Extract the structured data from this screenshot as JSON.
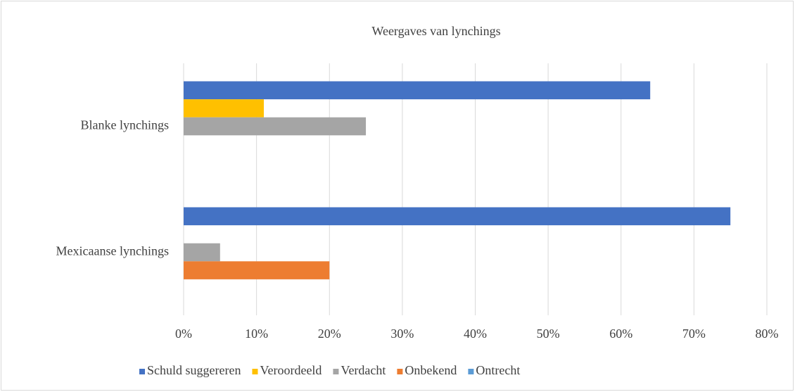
{
  "chart_data": {
    "type": "hbar",
    "title": "Weergaves van lynchings",
    "categories": [
      "Blanke lynchings",
      "Mexicaanse lynchings"
    ],
    "series": [
      {
        "name": "Schuld suggereren",
        "color": "#4472c4",
        "values": [
          64,
          75
        ]
      },
      {
        "name": "Veroordeeld",
        "color": "#ffc000",
        "values": [
          11,
          0
        ]
      },
      {
        "name": "Verdacht",
        "color": "#a5a5a5",
        "values": [
          25,
          5
        ]
      },
      {
        "name": "Onbekend",
        "color": "#ed7d31",
        "values": [
          0,
          20
        ]
      },
      {
        "name": "Ontrecht",
        "color": "#5b9bd5",
        "values": [
          0,
          0
        ]
      }
    ],
    "xlim": [
      0,
      80
    ],
    "xticks": [
      {
        "value": 0,
        "label": "0%"
      },
      {
        "value": 10,
        "label": "10%"
      },
      {
        "value": 20,
        "label": "20%"
      },
      {
        "value": 30,
        "label": "30%"
      },
      {
        "value": 40,
        "label": "40%"
      },
      {
        "value": 50,
        "label": "50%"
      },
      {
        "value": 60,
        "label": "60%"
      },
      {
        "value": 70,
        "label": "70%"
      },
      {
        "value": 80,
        "label": "80%"
      }
    ],
    "grid": true,
    "legend": "bottom"
  }
}
